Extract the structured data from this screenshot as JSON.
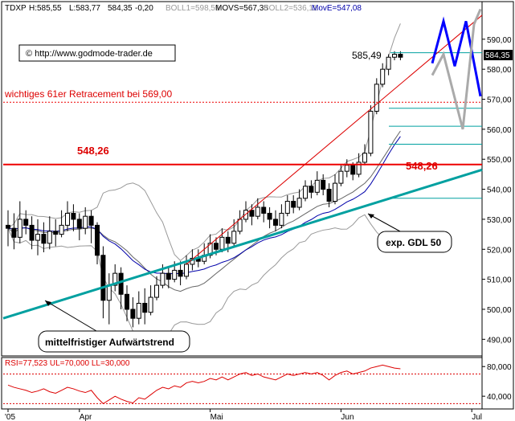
{
  "chart_data": [
    {
      "type": "candlestick",
      "header": {
        "symbol": "TDXP",
        "high": "H:585,55",
        "low": "L:583,77",
        "last": "584,35",
        "change": "-0,20",
        "boll1": "BOLL1=598,59",
        "movs": "MOVS=567,35",
        "boll2": "BOLL2=536,11",
        "move": "MovE=547,08"
      },
      "watermark": "© http://www.godmode-trader.de",
      "ylim": [
        485,
        602
      ],
      "yticks": [
        490,
        500,
        510,
        520,
        530,
        540,
        550,
        560,
        570,
        580,
        590
      ],
      "ytick_labels": [
        "490,00",
        "500,00",
        "510,00",
        "520,00",
        "530,00",
        "540,00",
        "550,00",
        "560,00",
        "570,00",
        "580,00",
        "590,00"
      ],
      "xticks": [
        {
          "label": "'05",
          "pos": 0
        },
        {
          "label": "Apr",
          "pos": 12
        },
        {
          "label": "Mai",
          "pos": 34
        },
        {
          "label": "Jun",
          "pos": 56
        },
        {
          "label": "Jul",
          "pos": 78
        }
      ],
      "last_price_label": "584,35",
      "candles": [
        [
          528,
          527,
          533,
          521
        ],
        [
          527,
          524,
          532,
          520
        ],
        [
          524,
          530,
          536,
          522
        ],
        [
          530,
          528,
          533,
          525
        ],
        [
          528,
          523,
          531,
          520
        ],
        [
          523,
          525,
          530,
          518
        ],
        [
          525,
          522,
          529,
          519
        ],
        [
          522,
          526,
          531,
          520
        ],
        [
          526,
          525,
          530,
          521
        ],
        [
          525,
          528,
          533,
          524
        ],
        [
          528,
          532,
          536,
          526
        ],
        [
          532,
          530,
          535,
          526
        ],
        [
          530,
          527,
          532,
          523
        ],
        [
          527,
          531,
          534,
          525
        ],
        [
          531,
          528,
          533,
          522
        ],
        [
          528,
          518,
          529,
          515
        ],
        [
          518,
          503,
          521,
          497
        ],
        [
          503,
          508,
          512,
          495
        ],
        [
          508,
          512,
          515,
          506
        ],
        [
          512,
          505,
          514,
          500
        ],
        [
          505,
          500,
          508,
          496
        ],
        [
          500,
          497,
          504,
          494
        ],
        [
          497,
          502,
          506,
          495
        ],
        [
          502,
          499,
          507,
          495
        ],
        [
          499,
          504,
          508,
          498
        ],
        [
          504,
          508,
          511,
          503
        ],
        [
          508,
          512,
          515,
          507
        ],
        [
          512,
          510,
          514,
          507
        ],
        [
          510,
          513,
          516,
          509
        ],
        [
          513,
          511,
          516,
          508
        ],
        [
          511,
          515,
          518,
          510
        ],
        [
          515,
          517,
          520,
          513
        ],
        [
          517,
          516,
          520,
          514
        ],
        [
          516,
          518,
          522,
          515
        ],
        [
          518,
          522,
          525,
          517
        ],
        [
          522,
          520,
          524,
          518
        ],
        [
          520,
          524,
          527,
          519
        ],
        [
          524,
          522,
          526,
          519
        ],
        [
          522,
          526,
          530,
          521
        ],
        [
          526,
          530,
          533,
          525
        ],
        [
          530,
          533,
          536,
          529
        ],
        [
          533,
          531,
          535,
          528
        ],
        [
          531,
          534,
          537,
          530
        ],
        [
          534,
          532,
          536,
          529
        ],
        [
          532,
          530,
          534,
          527
        ],
        [
          530,
          528,
          533,
          526
        ],
        [
          528,
          532,
          535,
          527
        ],
        [
          532,
          536,
          538,
          531
        ],
        [
          536,
          534,
          538,
          532
        ],
        [
          534,
          537,
          540,
          533
        ],
        [
          537,
          541,
          543,
          536
        ],
        [
          541,
          539,
          543,
          537
        ],
        [
          539,
          543,
          546,
          538
        ],
        [
          543,
          540,
          545,
          538
        ],
        [
          540,
          536,
          542,
          534
        ],
        [
          536,
          542,
          545,
          535
        ],
        [
          542,
          546,
          548,
          541
        ],
        [
          546,
          548,
          550,
          544
        ],
        [
          548,
          545,
          549,
          543
        ],
        [
          545,
          549,
          552,
          544
        ],
        [
          549,
          552,
          555,
          548
        ],
        [
          552,
          566,
          568,
          551
        ],
        [
          566,
          575,
          577,
          565
        ],
        [
          575,
          580,
          582,
          574
        ],
        [
          580,
          584,
          585,
          578
        ],
        [
          584,
          585,
          586,
          583
        ],
        [
          585,
          584,
          586,
          583
        ]
      ],
      "annotations": {
        "retracement_label": "wichtiges 61er Retracement bei 569,00",
        "retracement_level": 569,
        "support_level": 548.26,
        "support_label_left": "548,26",
        "support_label_right": "548,26",
        "price_label": "585,49",
        "price_level": 585.49,
        "trend_label": "mittelfristiger Aufwärtstrend",
        "gdl_label": "exp. GDL 50"
      },
      "colors": {
        "support": "#ee0000",
        "trend": "#00a0a0",
        "gdl": "#0000aa",
        "boll": "#999999",
        "channel": "#dd0000",
        "projection_blue": "#0000ff",
        "projection_gray": "#aaaaaa",
        "rsi": "#dd0000"
      }
    },
    {
      "type": "line",
      "title": "RSI=77,523 UL=70,000 LL=30,000",
      "ylim": [
        25,
        90
      ],
      "yticks": [
        40,
        80
      ],
      "ytick_labels": [
        "40,000",
        "80,000"
      ],
      "upper_level": 70,
      "lower_level": 30,
      "series": [
        {
          "values": [
            55,
            52,
            50,
            48,
            45,
            47,
            50,
            46,
            44,
            48,
            52,
            50,
            47,
            45,
            48,
            38,
            30,
            35,
            40,
            36,
            33,
            31,
            38,
            36,
            42,
            48,
            52,
            50,
            54,
            52,
            58,
            60,
            58,
            60,
            64,
            62,
            66,
            62,
            66,
            70,
            72,
            68,
            70,
            66,
            64,
            62,
            66,
            70,
            68,
            70,
            72,
            70,
            72,
            68,
            62,
            68,
            72,
            74,
            70,
            72,
            74,
            78,
            80,
            82,
            80,
            78,
            77
          ]
        }
      ]
    }
  ]
}
